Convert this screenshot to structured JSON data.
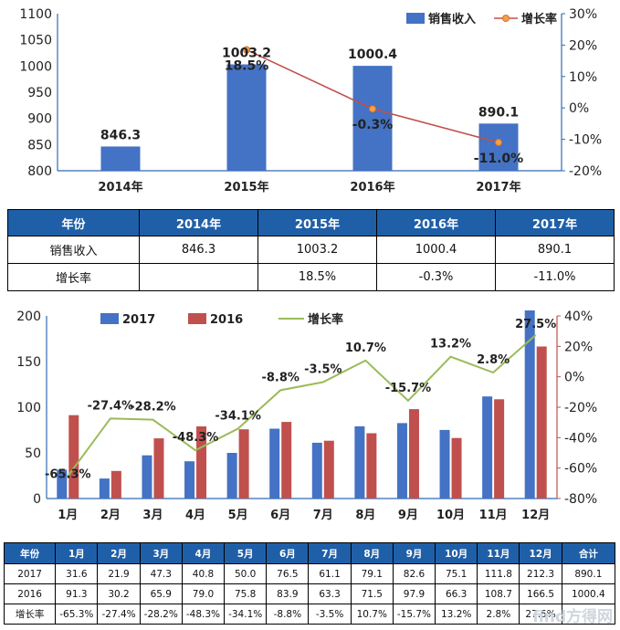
{
  "chart_data": [
    {
      "type": "bar",
      "categories": [
        "2014年",
        "2015年",
        "2016年",
        "2017年"
      ],
      "series": [
        {
          "name": "销售收入",
          "type": "bar",
          "axis": "left",
          "values": [
            846.3,
            1003.2,
            1000.4,
            890.1
          ],
          "color": "#4472c4"
        },
        {
          "name": "增长率",
          "type": "line",
          "axis": "right",
          "values": [
            null,
            18.5,
            -0.3,
            -11.0
          ],
          "color": "#c0504d"
        }
      ],
      "left_axis": {
        "min": 800,
        "max": 1100,
        "ticks": [
          "800",
          "850",
          "900",
          "950",
          "1000",
          "1050",
          "1100"
        ]
      },
      "right_axis": {
        "min": -20,
        "max": 30,
        "ticks": [
          "-20%",
          "-10%",
          "0%",
          "10%",
          "20%",
          "30%"
        ]
      },
      "value_labels": [
        "846.3",
        "1003.2",
        "1000.4",
        "890.1"
      ],
      "rate_labels": [
        "",
        "18.5%",
        "-0.3%",
        "-11.0%"
      ],
      "legend_position": "top-right"
    },
    {
      "type": "bar",
      "categories": [
        "1月",
        "2月",
        "3月",
        "4月",
        "5月",
        "6月",
        "7月",
        "8月",
        "9月",
        "10月",
        "11月",
        "12月"
      ],
      "series": [
        {
          "name": "2017",
          "type": "bar",
          "axis": "left",
          "values": [
            31.6,
            21.9,
            47.3,
            40.8,
            50.0,
            76.5,
            61.1,
            79.1,
            82.6,
            75.1,
            111.8,
            212.3
          ],
          "color": "#4472c4"
        },
        {
          "name": "2016",
          "type": "bar",
          "axis": "left",
          "values": [
            91.3,
            30.2,
            65.9,
            79.0,
            75.8,
            83.9,
            63.3,
            71.5,
            97.9,
            66.3,
            108.7,
            166.5
          ],
          "color": "#c0504d"
        },
        {
          "name": "增长率",
          "type": "line",
          "axis": "right",
          "values": [
            -65.3,
            -27.4,
            -28.2,
            -48.3,
            -34.1,
            -8.8,
            -3.5,
            10.7,
            -15.7,
            13.2,
            2.8,
            27.5
          ],
          "color": "#9bbb59"
        }
      ],
      "left_axis": {
        "min": 0,
        "max": 200,
        "ticks": [
          "0",
          "50",
          "100",
          "150",
          "200"
        ]
      },
      "right_axis": {
        "min": -80,
        "max": 40,
        "ticks": [
          "-80%",
          "-60%",
          "-40%",
          "-20%",
          "0%",
          "20%",
          "40%"
        ]
      },
      "rate_labels": [
        "-65.3%",
        "-27.4%",
        "-28.2%",
        "-48.3%",
        "-34.1%",
        "-8.8%",
        "-3.5%",
        "10.7%",
        "-15.7%",
        "13.2%",
        "2.8%",
        "27.5%"
      ],
      "legend_position": "top"
    }
  ],
  "table1": {
    "header": [
      "年份",
      "2014年",
      "2015年",
      "2016年",
      "2017年"
    ],
    "rows": [
      [
        "销售收入",
        "846.3",
        "1003.2",
        "1000.4",
        "890.1"
      ],
      [
        "增长率",
        "",
        "18.5%",
        "-0.3%",
        "-11.0%"
      ]
    ]
  },
  "table2": {
    "header": [
      "年份",
      "1月",
      "2月",
      "3月",
      "4月",
      "5月",
      "6月",
      "7月",
      "8月",
      "9月",
      "10月",
      "11月",
      "12月",
      "合计"
    ],
    "rows": [
      [
        "2017",
        "31.6",
        "21.9",
        "47.3",
        "40.8",
        "50.0",
        "76.5",
        "61.1",
        "79.1",
        "82.6",
        "75.1",
        "111.8",
        "212.3",
        "890.1"
      ],
      [
        "2016",
        "91.3",
        "30.2",
        "65.9",
        "79.0",
        "75.8",
        "83.9",
        "63.3",
        "71.5",
        "97.9",
        "66.3",
        "108.7",
        "166.5",
        "1000.4"
      ],
      [
        "增长率",
        "-65.3%",
        "-27.4%",
        "-28.2%",
        "-48.3%",
        "-34.1%",
        "-8.8%",
        "-3.5%",
        "10.7%",
        "-15.7%",
        "13.2%",
        "2.8%",
        "27.5%",
        ""
      ]
    ]
  },
  "watermark": "find方得网"
}
